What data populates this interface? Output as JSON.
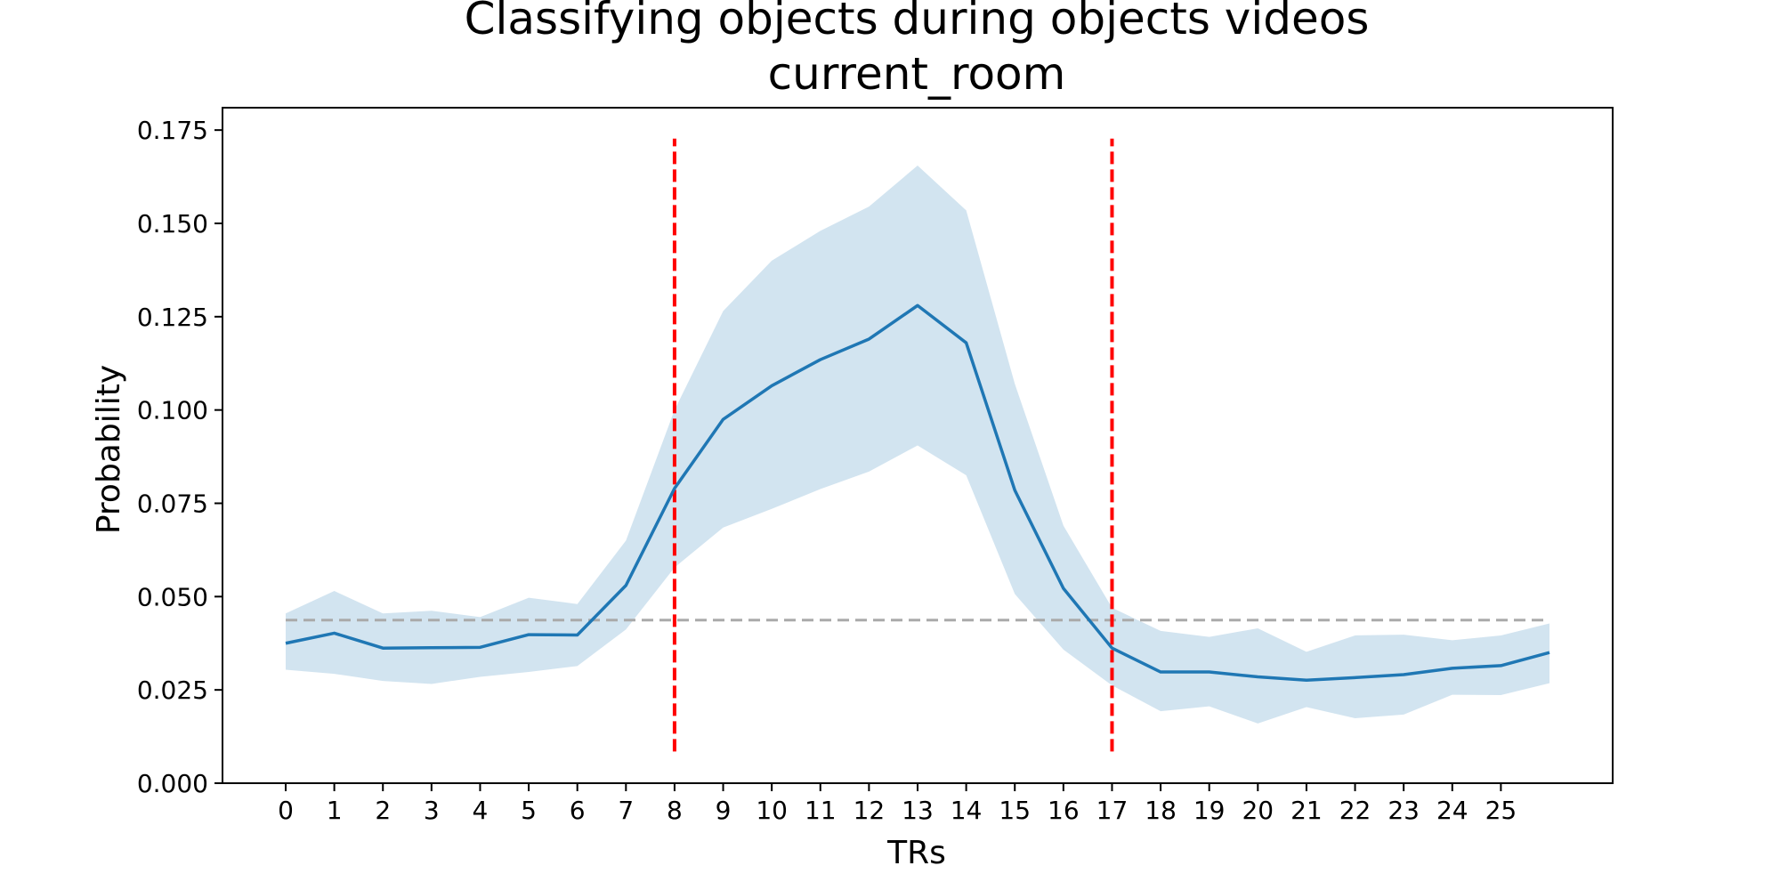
{
  "chart_data": {
    "type": "line",
    "title": "Classifying objects during objects videos",
    "subtitle": "current_room",
    "xlabel": "TRs",
    "ylabel": "Probability",
    "xlim": [
      -1.3,
      27.3
    ],
    "ylim": [
      0.0,
      0.181
    ],
    "x_ticks": [
      0,
      1,
      2,
      3,
      4,
      5,
      6,
      7,
      8,
      9,
      10,
      11,
      12,
      13,
      14,
      15,
      16,
      17,
      18,
      19,
      20,
      21,
      22,
      23,
      24,
      25
    ],
    "x_tick_labels": [
      "0",
      "1",
      "2",
      "3",
      "4",
      "5",
      "6",
      "7",
      "8",
      "9",
      "10",
      "11",
      "12",
      "13",
      "14",
      "15",
      "16",
      "17",
      "18",
      "19",
      "20",
      "21",
      "22",
      "23",
      "24",
      "25"
    ],
    "y_ticks": [
      0.0,
      0.025,
      0.05,
      0.075,
      0.1,
      0.125,
      0.15,
      0.175
    ],
    "y_tick_labels": [
      "0.000",
      "0.025",
      "0.050",
      "0.075",
      "0.100",
      "0.125",
      "0.150",
      "0.175"
    ],
    "grid": false,
    "series": [
      {
        "x": [
          0,
          1,
          2,
          3,
          4,
          5,
          6,
          7,
          8,
          9,
          10,
          11,
          12,
          13,
          14,
          15,
          16,
          17,
          18,
          19,
          20,
          21,
          22,
          23,
          24,
          25,
          26
        ],
        "values": [
          0.0375,
          0.0402,
          0.0362,
          0.0363,
          0.0364,
          0.0398,
          0.0397,
          0.053,
          0.079,
          0.0975,
          0.1065,
          0.1135,
          0.119,
          0.128,
          0.118,
          0.0785,
          0.0522,
          0.0362,
          0.0298,
          0.0298,
          0.0285,
          0.0276,
          0.0283,
          0.0291,
          0.0308,
          0.0315,
          0.035
        ],
        "upper": [
          0.0455,
          0.0515,
          0.0455,
          0.0462,
          0.0445,
          0.0497,
          0.048,
          0.065,
          0.1,
          0.1265,
          0.14,
          0.148,
          0.1545,
          0.1655,
          0.1535,
          0.107,
          0.069,
          0.047,
          0.0408,
          0.0392,
          0.0415,
          0.0352,
          0.0396,
          0.0398,
          0.0383,
          0.0396,
          0.0428
        ],
        "lower": [
          0.0304,
          0.0293,
          0.0274,
          0.0266,
          0.0285,
          0.0298,
          0.0314,
          0.0412,
          0.0578,
          0.0685,
          0.0735,
          0.0788,
          0.0835,
          0.0905,
          0.0825,
          0.0507,
          0.0358,
          0.0262,
          0.0193,
          0.0206,
          0.016,
          0.0204,
          0.0174,
          0.0184,
          0.0237,
          0.0236,
          0.0268
        ],
        "color": "#1f77b4",
        "band_color": "#1f77b4"
      }
    ],
    "reference_lines": [
      {
        "orientation": "horizontal",
        "value": 0.0437,
        "from_x": 0,
        "to_x": 26,
        "color": "#aaaaaa",
        "style": "dashed"
      },
      {
        "orientation": "vertical",
        "value": 8,
        "from_y": 0.0085,
        "to_y": 0.1727,
        "color": "#ff0000",
        "style": "dashed"
      },
      {
        "orientation": "vertical",
        "value": 17,
        "from_y": 0.0085,
        "to_y": 0.1727,
        "color": "#ff0000",
        "style": "dashed"
      }
    ]
  }
}
